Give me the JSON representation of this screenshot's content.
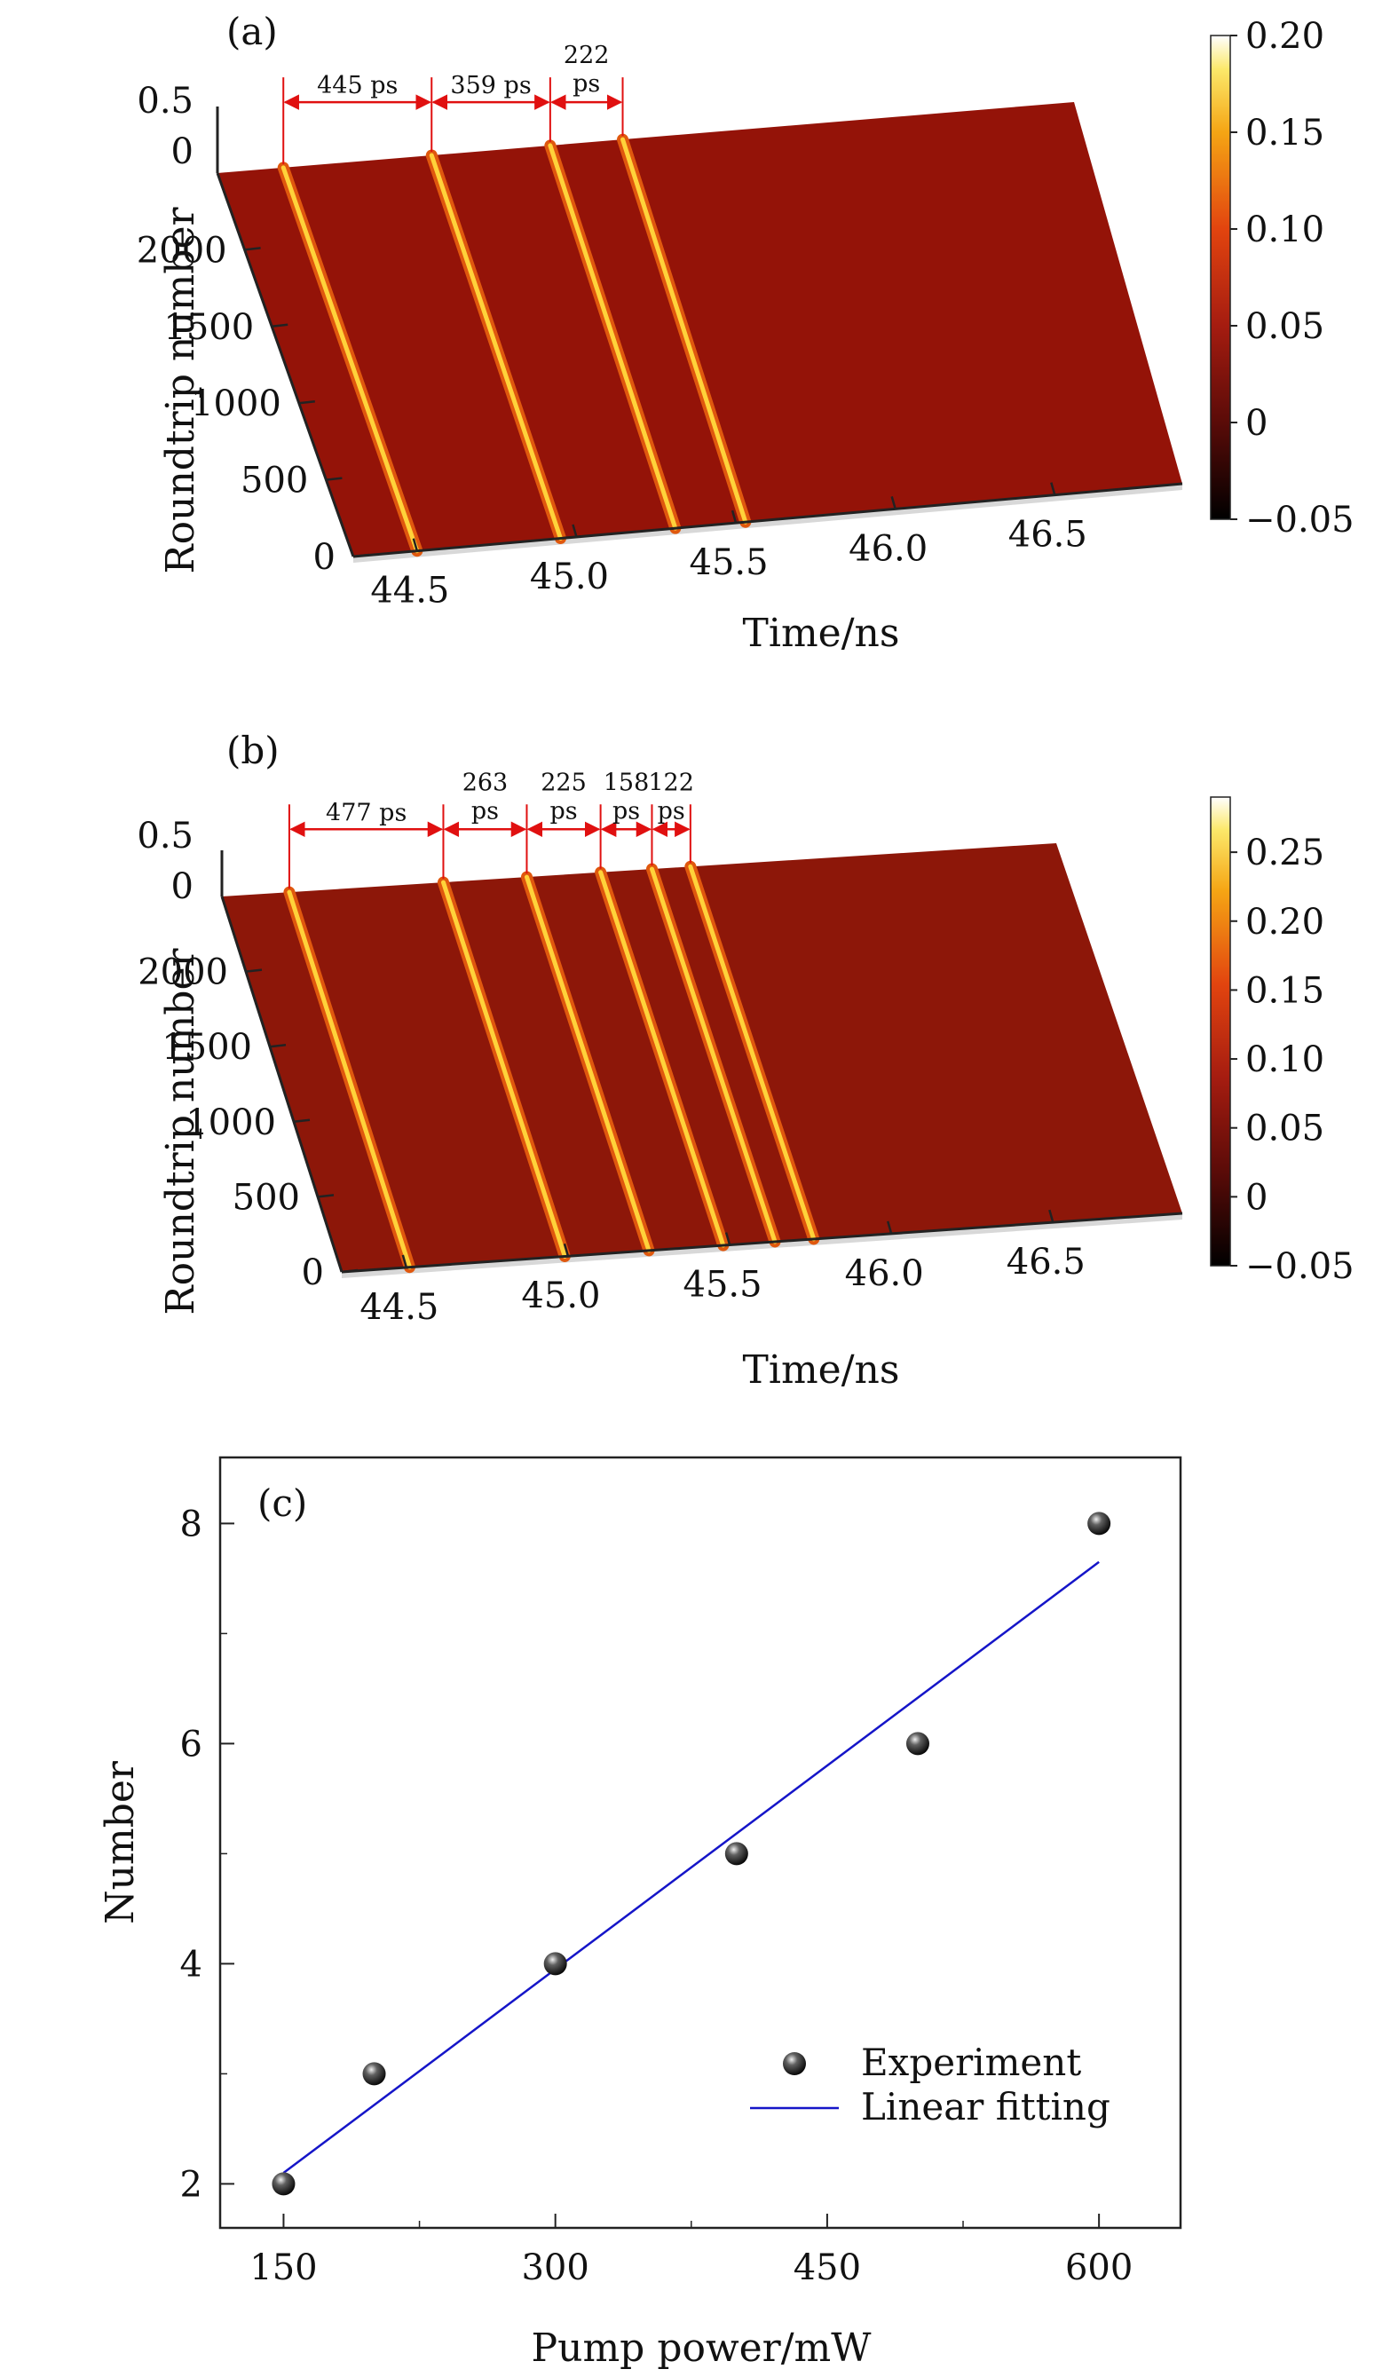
{
  "chart_data": [
    {
      "type": "heatmap",
      "panel_label": "(a)",
      "xlabel": "Time/ns",
      "ylabel": "Roundtrip number",
      "x_ticks": [
        "44.5",
        "45.0",
        "45.5",
        "46.0",
        "46.5"
      ],
      "x_range": [
        44.3,
        46.9
      ],
      "y_ticks": [
        "0",
        "500",
        "1000",
        "1500",
        "2000"
      ],
      "y_range": [
        0,
        2500
      ],
      "z_ticks": [
        "0.5",
        "0"
      ],
      "colorbar_ticks": [
        "0.20",
        "0.15",
        "0.10",
        "0.05",
        "0",
        "−0.05"
      ],
      "colorbar_range": [
        -0.05,
        0.2
      ],
      "pulses_ns": [
        44.5,
        44.95,
        45.31,
        45.53
      ],
      "annotations": [
        {
          "text": "445 ps",
          "from": 44.5,
          "to": 44.95
        },
        {
          "text": "359 ps",
          "from": 44.95,
          "to": 45.31
        },
        {
          "text": "222 ps",
          "from": 45.31,
          "to": 45.53
        }
      ]
    },
    {
      "type": "heatmap",
      "panel_label": "(b)",
      "xlabel": "Time/ns",
      "ylabel": "Roundtrip number",
      "x_ticks": [
        "44.5",
        "45.0",
        "45.5",
        "46.0",
        "46.5"
      ],
      "x_range": [
        44.3,
        46.9
      ],
      "y_ticks": [
        "0",
        "500",
        "1000",
        "1500",
        "2000"
      ],
      "y_range": [
        0,
        2500
      ],
      "z_ticks": [
        "0.5",
        "0"
      ],
      "colorbar_ticks": [
        "0.25",
        "0.20",
        "0.15",
        "0.10",
        "0.05",
        "0",
        "−0.05"
      ],
      "colorbar_range": [
        -0.05,
        0.29
      ],
      "pulses_ns": [
        44.51,
        44.99,
        45.25,
        45.48,
        45.64,
        45.76
      ],
      "annotations": [
        {
          "text": "477 ps",
          "from": 44.51,
          "to": 44.99
        },
        {
          "text": "263 ps",
          "from": 44.99,
          "to": 45.25
        },
        {
          "text": "225 ps",
          "from": 45.25,
          "to": 45.48
        },
        {
          "text": "158 ps",
          "from": 45.48,
          "to": 45.64
        },
        {
          "text": "122 ps",
          "from": 45.64,
          "to": 45.76
        }
      ]
    },
    {
      "type": "scatter",
      "panel_label": "(c)",
      "xlabel": "Pump power/mW",
      "ylabel": "Number",
      "xlim": [
        115,
        645
      ],
      "ylim": [
        1.6,
        8.6
      ],
      "x_ticks": [
        150,
        300,
        450,
        600
      ],
      "y_ticks": [
        2,
        4,
        6,
        8
      ],
      "legend_position": "bottom-right",
      "series": [
        {
          "name": "Experiment",
          "x": [
            150,
            200,
            300,
            400,
            500,
            600
          ],
          "y": [
            2,
            3,
            4,
            5,
            6,
            8
          ]
        },
        {
          "name": "Linear fitting",
          "x": [
            150,
            600
          ],
          "y": [
            2.1,
            7.65
          ],
          "color": "#1515c8"
        }
      ]
    }
  ]
}
